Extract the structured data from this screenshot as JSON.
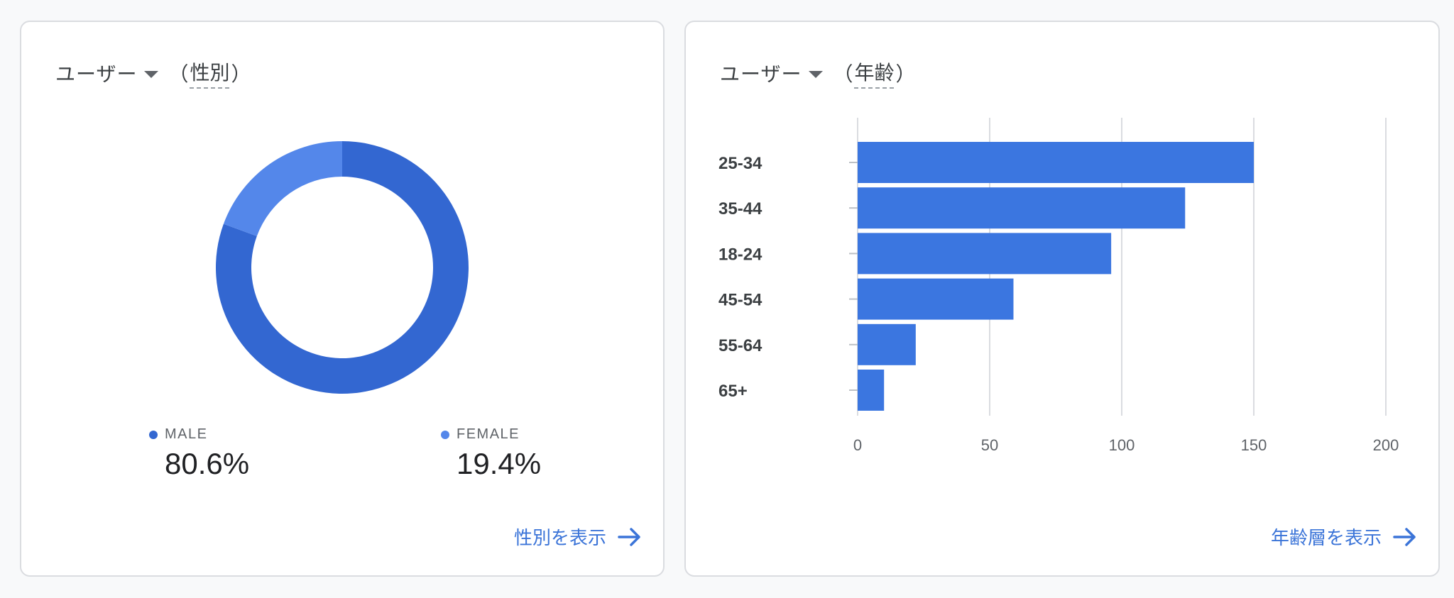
{
  "gender_card": {
    "metric_label": "ユーザー",
    "dim_open": "（",
    "dimension": "性別",
    "dim_close": "）",
    "legend": [
      {
        "label": "MALE",
        "value": "80.6%"
      },
      {
        "label": "FEMALE",
        "value": "19.4%"
      }
    ],
    "link_label": "性別を表示"
  },
  "age_card": {
    "metric_label": "ユーザー",
    "dim_open": "（",
    "dimension": "年齢",
    "dim_close": "）",
    "link_label": "年齢層を表示"
  },
  "colors": {
    "male": "#3367d1",
    "female": "#5487ea",
    "bar": "#3b76e0",
    "link": "#3b74d8"
  },
  "chart_data": [
    {
      "type": "pie",
      "categories": [
        "MALE",
        "FEMALE"
      ],
      "values": [
        80.6,
        19.4
      ]
    },
    {
      "type": "bar",
      "orientation": "horizontal",
      "categories": [
        "25-34",
        "35-44",
        "18-24",
        "45-54",
        "55-64",
        "65+"
      ],
      "values": [
        150,
        124,
        96,
        59,
        22,
        10
      ],
      "x_ticks": [
        "0",
        "50",
        "100",
        "150",
        "200"
      ],
      "xlim": [
        0,
        200
      ],
      "grid": true
    }
  ]
}
